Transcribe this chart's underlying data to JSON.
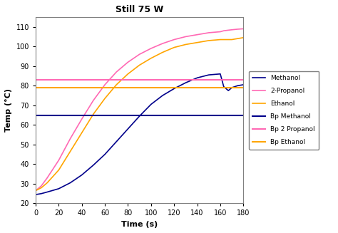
{
  "title": "Still 75 W",
  "xlabel": "Time (s)",
  "ylabel": "Temp (°C)",
  "xlim": [
    0,
    180
  ],
  "ylim": [
    20,
    115
  ],
  "xticks": [
    0,
    20,
    40,
    60,
    80,
    100,
    120,
    140,
    160,
    180
  ],
  "yticks": [
    20,
    30,
    40,
    50,
    60,
    70,
    80,
    90,
    100,
    110
  ],
  "bp_methanol": 65.0,
  "bp_2propanol": 83.0,
  "bp_ethanol": 79.0,
  "color_methanol": "#00008B",
  "color_2propanol": "#FF69B4",
  "color_ethanol": "#FFA500",
  "bg_color": "#FFFFFF",
  "legend_labels": [
    "Methanol",
    "2-Propanol",
    "Ethanol",
    "Bp Methanol",
    "Bp 2 Propanol",
    "Bp Ethanol"
  ],
  "t": [
    0,
    5,
    10,
    20,
    30,
    40,
    50,
    60,
    70,
    80,
    90,
    100,
    110,
    120,
    130,
    140,
    150,
    160,
    163,
    167,
    170,
    175,
    180
  ],
  "methanol": [
    24.5,
    25.0,
    25.8,
    27.5,
    30.5,
    34.5,
    39.5,
    45.0,
    51.5,
    58.0,
    64.5,
    70.5,
    75.0,
    78.5,
    81.5,
    84.0,
    85.5,
    86.0,
    79.5,
    77.5,
    79.0,
    80.0,
    80.5
  ],
  "propanol": [
    26.5,
    29.0,
    33.0,
    42.0,
    53.0,
    63.0,
    72.5,
    80.5,
    87.0,
    92.0,
    96.0,
    99.0,
    101.5,
    103.5,
    105.0,
    106.0,
    107.0,
    107.5,
    108.0,
    108.3,
    108.5,
    108.8,
    109.0
  ],
  "ethanol": [
    26.5,
    28.0,
    30.5,
    37.0,
    46.5,
    56.0,
    65.5,
    73.5,
    80.5,
    86.0,
    90.5,
    94.0,
    97.0,
    99.5,
    101.0,
    102.0,
    103.0,
    103.5,
    103.5,
    103.5,
    103.5,
    104.0,
    104.5
  ]
}
